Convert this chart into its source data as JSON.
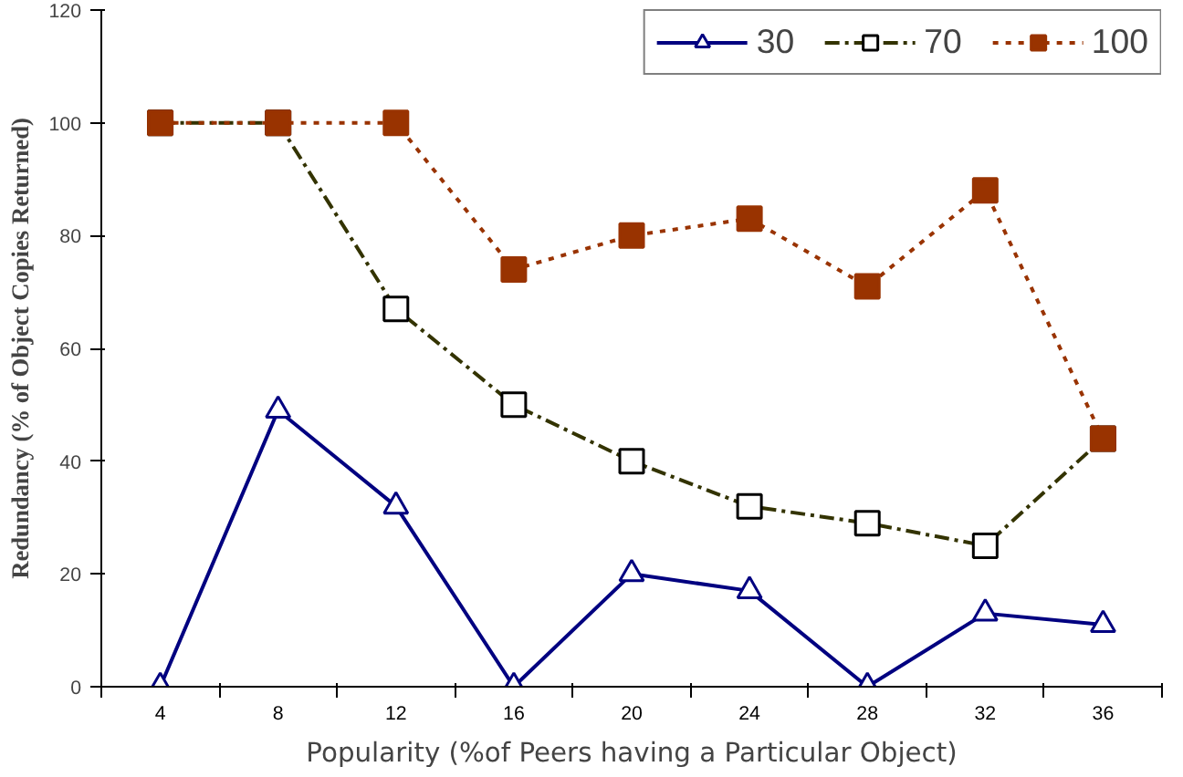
{
  "chart_data": {
    "type": "line",
    "xlabel": "Popularity (%of Peers having a Particular Object)",
    "ylabel": "Redundancy (% of Object Copies Returned)",
    "categories": [
      "4",
      "8",
      "12",
      "16",
      "20",
      "24",
      "28",
      "32",
      "36"
    ],
    "series": [
      {
        "name": "30",
        "color": "#000080",
        "marker": "triangle",
        "line_style": "solid",
        "values": [
          0,
          49,
          32,
          0,
          20,
          17,
          0,
          13,
          11
        ]
      },
      {
        "name": "70",
        "color": "#333300",
        "marker": "square",
        "line_style": "dashed",
        "values": [
          100,
          100,
          67,
          50,
          40,
          32,
          29,
          25,
          44
        ]
      },
      {
        "name": "100",
        "color": "#993300",
        "marker": "square",
        "line_style": "dotted",
        "values": [
          100,
          100,
          100,
          74,
          80,
          83,
          71,
          88,
          44
        ]
      }
    ],
    "ylim": [
      0,
      120
    ],
    "yticks": [
      0,
      20,
      40,
      60,
      80,
      100,
      120
    ],
    "grid": false,
    "legend": "top right"
  }
}
